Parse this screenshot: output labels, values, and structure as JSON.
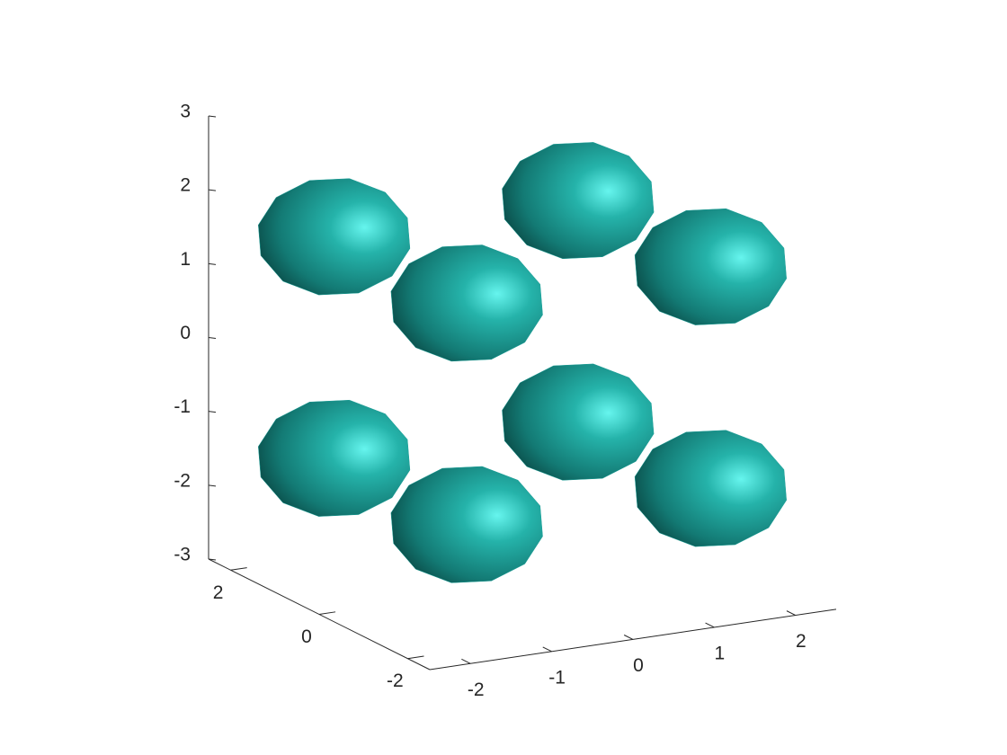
{
  "chart_data": {
    "type": "isosurface",
    "x": [
      -1.5,
      -1.5,
      -1.5,
      -1.5,
      1.5,
      1.5,
      1.5,
      1.5
    ],
    "y": [
      1.5,
      1.5,
      -1.5,
      -1.5,
      1.5,
      1.5,
      -1.5,
      -1.5
    ],
    "z": [
      1.5,
      -1.5,
      1.5,
      -1.5,
      1.5,
      -1.5,
      1.5,
      -1.5
    ],
    "color": "#1a9e96",
    "xlim": [
      -2.5,
      2.5
    ],
    "ylim": [
      -2.5,
      2.5
    ],
    "zlim": [
      -3,
      3
    ],
    "xticks": [
      -2,
      -1,
      0,
      1,
      2
    ],
    "yticks": [
      -2,
      0,
      2
    ],
    "zticks": [
      -3,
      -2,
      -1,
      0,
      1,
      2,
      3
    ]
  }
}
